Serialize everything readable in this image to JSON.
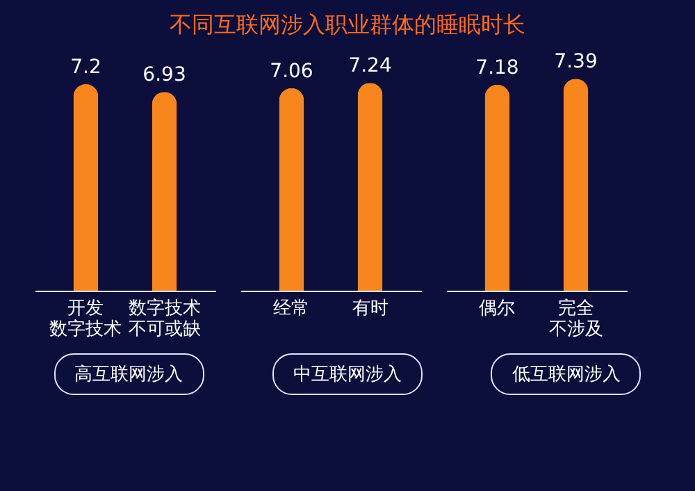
{
  "chart_data": {
    "type": "bar",
    "title": "不同互联网涉入职业群体的睡眠时长",
    "categories": [
      "开发数字技术",
      "数字技术不可或缺",
      "经常",
      "有时",
      "偶尔",
      "完全不涉及"
    ],
    "values": [
      7.2,
      6.93,
      7.06,
      7.24,
      7.18,
      7.39
    ],
    "color": "#f7861c",
    "data_labels": true,
    "annotations": [
      "高互联网涉入",
      "中互联网涉入",
      "低互联网涉入"
    ]
  }
}
